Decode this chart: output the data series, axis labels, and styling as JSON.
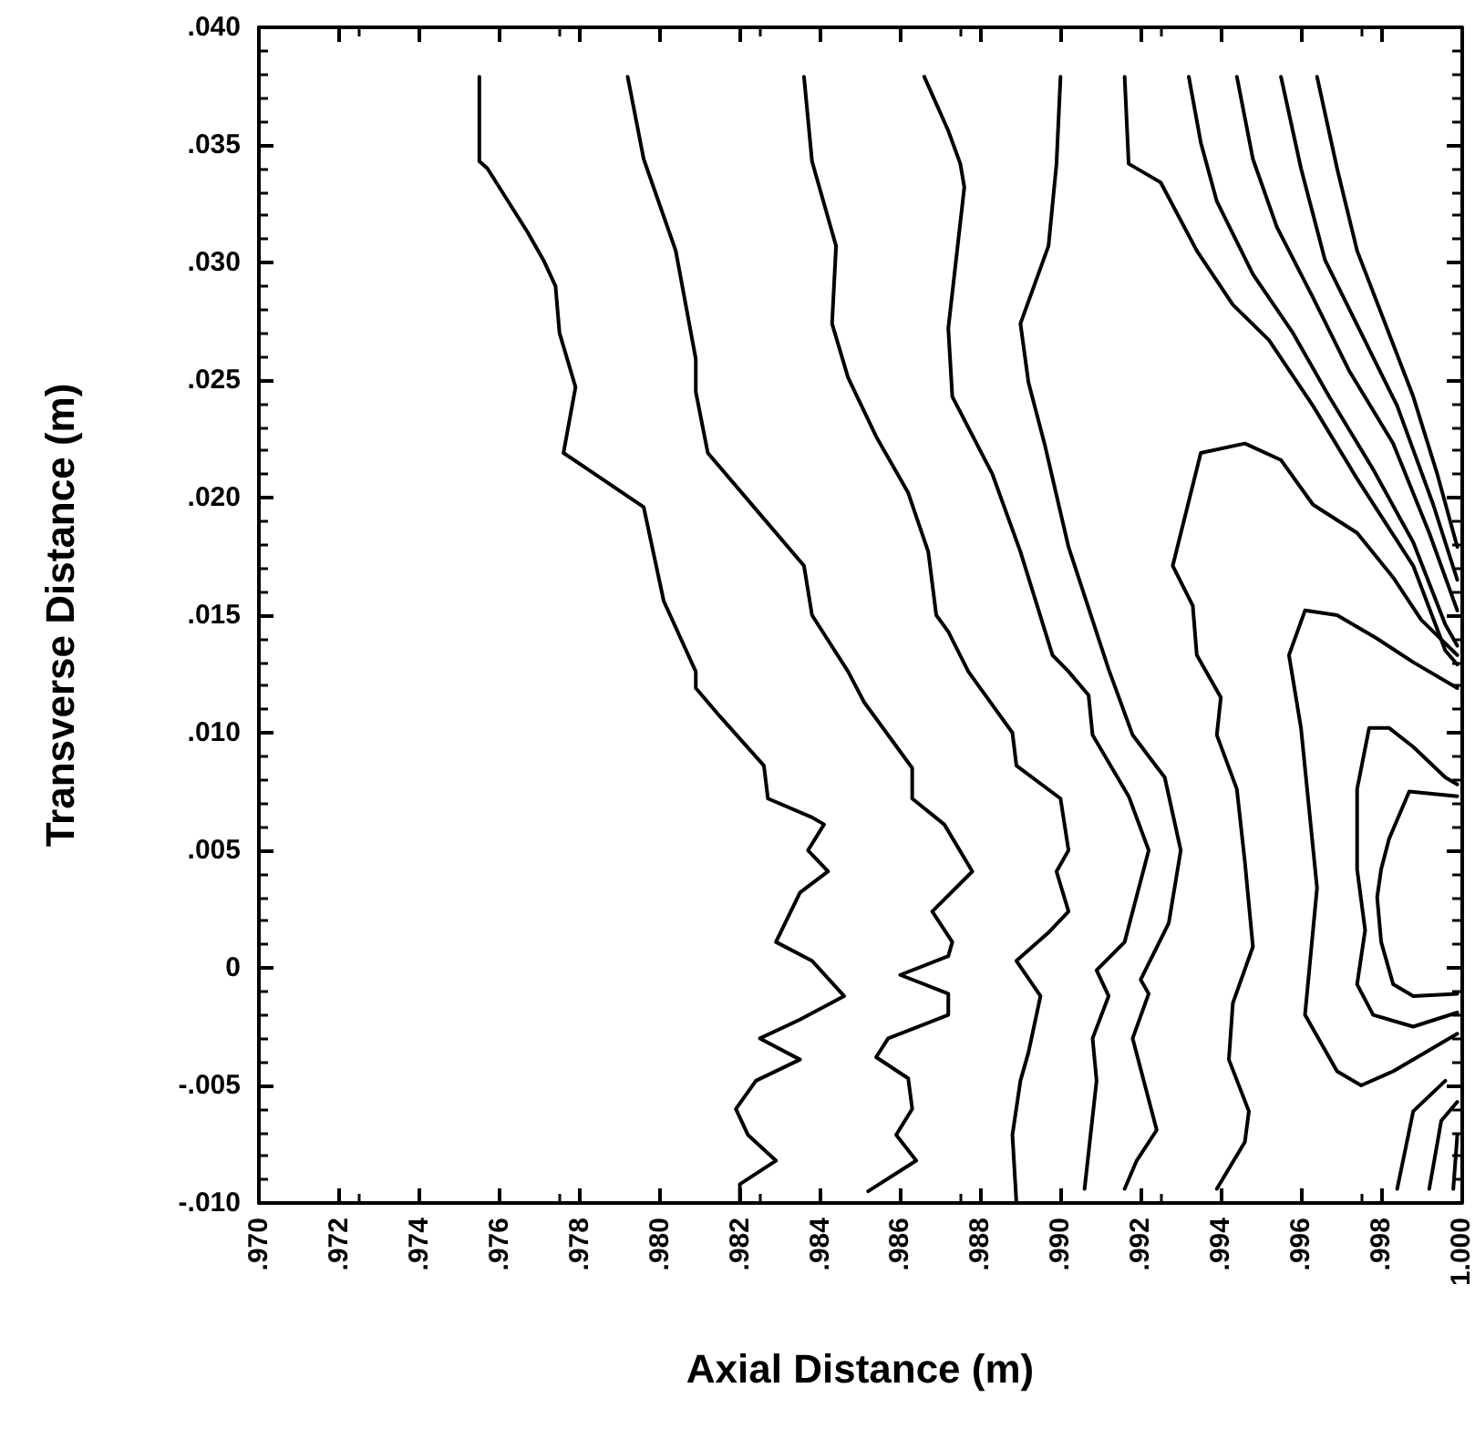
{
  "chart_data": {
    "type": "line",
    "xlabel": "Axial Distance (m)",
    "ylabel": "Transverse Distance (m)",
    "xlim": [
      0.97,
      1.0
    ],
    "ylim": [
      -0.01,
      0.04
    ],
    "xticks": [
      {
        "value": 0.97,
        "label": ".970"
      },
      {
        "value": 0.972,
        "label": ".972"
      },
      {
        "value": 0.974,
        "label": ".974"
      },
      {
        "value": 0.976,
        "label": ".976"
      },
      {
        "value": 0.978,
        "label": ".978"
      },
      {
        "value": 0.98,
        "label": ".980"
      },
      {
        "value": 0.982,
        "label": ".982"
      },
      {
        "value": 0.984,
        "label": ".984"
      },
      {
        "value": 0.986,
        "label": ".986"
      },
      {
        "value": 0.988,
        "label": ".988"
      },
      {
        "value": 0.99,
        "label": ".990"
      },
      {
        "value": 0.992,
        "label": ".992"
      },
      {
        "value": 0.994,
        "label": ".994"
      },
      {
        "value": 0.996,
        "label": ".996"
      },
      {
        "value": 0.998,
        "label": ".998"
      },
      {
        "value": 1.0,
        "label": "1.000"
      }
    ],
    "yticks": [
      {
        "value": -0.01,
        "label": "-.010"
      },
      {
        "value": -0.005,
        "label": "-.005"
      },
      0,
      {
        "value": 0.005,
        "label": ".005"
      },
      {
        "value": 0.01,
        "label": ".010"
      },
      {
        "value": 0.015,
        "label": ".015"
      },
      {
        "value": 0.02,
        "label": ".020"
      },
      {
        "value": 0.025,
        "label": ".025"
      },
      {
        "value": 0.03,
        "label": ".030"
      },
      {
        "value": 0.035,
        "label": ".035"
      },
      {
        "value": 0.04,
        "label": ".040"
      }
    ],
    "marker": "none",
    "line_style": "solid",
    "series": [
      {
        "color": "#000000",
        "x": [
          0.9755,
          0.9755,
          0.9757,
          0.9767,
          0.9771,
          0.9774,
          0.9775,
          0.9779,
          0.9776,
          0.9796,
          0.9801,
          0.9809,
          0.9809,
          0.9815,
          0.9826,
          0.9827,
          0.9838,
          0.9841,
          0.9837,
          0.9842,
          0.9835,
          0.9829,
          0.9838,
          0.9846,
          0.9835,
          0.9825,
          0.9835,
          0.9824,
          0.9819,
          0.9822,
          0.9829,
          0.982,
          0.982
        ],
        "values": [
          0.0379,
          0.0343,
          0.034,
          0.0313,
          0.0301,
          0.029,
          0.027,
          0.0247,
          0.0219,
          0.0196,
          0.0156,
          0.0126,
          0.0119,
          0.0107,
          0.0086,
          0.0072,
          0.0064,
          0.0061,
          0.005,
          0.0041,
          0.0032,
          0.0011,
          0.0003,
          -0.0012,
          -0.0022,
          -0.003,
          -0.0039,
          -0.0048,
          -0.006,
          -0.0071,
          -0.0082,
          -0.0092,
          -0.01
        ]
      },
      {
        "color": "#000000",
        "x": [
          0.9792,
          0.9796,
          0.9804,
          0.9809,
          0.9809,
          0.9812,
          0.9827,
          0.9836,
          0.9838,
          0.9847,
          0.9851,
          0.9863,
          0.9863,
          0.9871,
          0.9878,
          0.9868,
          0.9873,
          0.9872,
          0.986,
          0.9872,
          0.9872,
          0.9857,
          0.9854,
          0.9862,
          0.9863,
          0.9859,
          0.9864,
          0.9852
        ],
        "values": [
          0.0379,
          0.0344,
          0.0305,
          0.0259,
          0.0245,
          0.0219,
          0.0189,
          0.0171,
          0.015,
          0.0126,
          0.0113,
          0.0085,
          0.0072,
          0.0061,
          0.0041,
          0.0024,
          0.0011,
          0.0005,
          -0.0003,
          -0.0011,
          -0.002,
          -0.003,
          -0.0038,
          -0.0047,
          -0.006,
          -0.0071,
          -0.0082,
          -0.0095
        ]
      },
      {
        "color": "#000000",
        "x": [
          0.9836,
          0.9838,
          0.9844,
          0.9843,
          0.9847,
          0.9854,
          0.9862,
          0.9867,
          0.9869,
          0.9872,
          0.9877,
          0.9888,
          0.9889,
          0.99,
          0.9902,
          0.9899,
          0.9902,
          0.9897,
          0.9889,
          0.9895,
          0.9892,
          0.989,
          0.9888,
          0.9889
        ],
        "values": [
          0.0379,
          0.0343,
          0.0307,
          0.0274,
          0.0251,
          0.0226,
          0.0202,
          0.0177,
          0.015,
          0.0143,
          0.0126,
          0.01,
          0.0086,
          0.0072,
          0.005,
          0.0041,
          0.0024,
          0.0015,
          0.0003,
          -0.0012,
          -0.0036,
          -0.0048,
          -0.0071,
          -0.01
        ]
      },
      {
        "color": "#000000",
        "x": [
          0.9866,
          0.9872,
          0.9875,
          0.9876,
          0.9872,
          0.9873,
          0.9883,
          0.989,
          0.9898,
          0.9902,
          0.9907,
          0.9908,
          0.9917,
          0.9922,
          0.9916,
          0.9909,
          0.9912,
          0.9908,
          0.9909,
          0.9906
        ],
        "values": [
          0.0379,
          0.0356,
          0.0342,
          0.0332,
          0.0272,
          0.0243,
          0.021,
          0.0177,
          0.0133,
          0.0126,
          0.0116,
          0.0099,
          0.0073,
          0.005,
          0.0011,
          -0.0001,
          -0.0012,
          -0.003,
          -0.0048,
          -0.0094
        ]
      },
      {
        "color": "#000000",
        "x": [
          0.99,
          0.9899,
          0.9897,
          0.989,
          0.9892,
          0.9896,
          0.9902,
          0.9912,
          0.9918,
          0.9926,
          0.993,
          0.9927,
          0.992,
          0.9922,
          0.9918,
          0.9924,
          0.9919,
          0.9916
        ],
        "values": [
          0.0379,
          0.0342,
          0.0307,
          0.0274,
          0.0249,
          0.0223,
          0.0179,
          0.0127,
          0.0099,
          0.0081,
          0.005,
          0.0019,
          -0.0005,
          -0.0011,
          -0.003,
          -0.0069,
          -0.0082,
          -0.0094
        ]
      },
      {
        "color": "#000000",
        "x": [
          0.9916,
          0.9917,
          0.9925,
          0.9934,
          0.9943,
          0.9952,
          0.9963,
          0.9974,
          0.9988,
          0.9996,
          0.9999
        ],
        "values": [
          0.0379,
          0.0342,
          0.0334,
          0.0305,
          0.0282,
          0.0267,
          0.0239,
          0.0208,
          0.0171,
          0.0135,
          0.0129
        ]
      },
      {
        "color": "#000000",
        "x": [
          0.9932,
          0.9935,
          0.9939,
          0.9948,
          0.9958,
          0.9967,
          0.9978,
          0.9988,
          0.9996,
          0.9999
        ],
        "values": [
          0.0379,
          0.0351,
          0.0326,
          0.0295,
          0.027,
          0.0243,
          0.0212,
          0.0181,
          0.0146,
          0.0137
        ]
      },
      {
        "color": "#000000",
        "x": [
          0.9944,
          0.9948,
          0.9954,
          0.9963,
          0.9972,
          0.9983,
          0.9992,
          0.9999
        ],
        "values": [
          0.0379,
          0.0344,
          0.0315,
          0.0285,
          0.0254,
          0.0223,
          0.0185,
          0.0152
        ]
      },
      {
        "color": "#000000",
        "x": [
          0.9955,
          0.996,
          0.9966,
          0.9975,
          0.9984,
          0.9993,
          0.9999
        ],
        "values": [
          0.0379,
          0.034,
          0.0301,
          0.027,
          0.0239,
          0.0197,
          0.0165
        ]
      },
      {
        "color": "#000000",
        "x": [
          0.9964,
          0.9969,
          0.9974,
          0.9981,
          0.9988,
          0.9994,
          0.9999
        ],
        "values": [
          0.0379,
          0.034,
          0.0305,
          0.0274,
          0.0243,
          0.021,
          0.0179
        ]
      },
      {
        "color": "#000000",
        "x": [
          0.9999,
          0.999,
          0.9983,
          0.9974,
          0.9963,
          0.9955,
          0.9946,
          0.9935,
          0.9928,
          0.9933,
          0.9934,
          0.994,
          0.9939,
          0.9944,
          0.9946,
          0.9948,
          0.9943,
          0.9942,
          0.9947,
          0.9946,
          0.9939
        ],
        "values": [
          0.0133,
          0.0148,
          0.0166,
          0.0185,
          0.0197,
          0.0216,
          0.0223,
          0.0219,
          0.0171,
          0.0154,
          0.0133,
          0.0115,
          0.0099,
          0.0076,
          0.0045,
          0.0009,
          -0.0015,
          -0.0039,
          -0.0061,
          -0.0074,
          -0.0094
        ]
      },
      {
        "color": "#000000",
        "x": [
          0.9999,
          0.9988,
          0.9979,
          0.9969,
          0.9961,
          0.9957,
          0.996,
          0.9964,
          0.9961,
          0.9969,
          0.9975,
          0.9983,
          0.9999
        ],
        "values": [
          0.0119,
          0.013,
          0.014,
          0.015,
          0.0152,
          0.0133,
          0.0102,
          0.0034,
          -0.002,
          -0.0044,
          -0.005,
          -0.0044,
          -0.0028
        ]
      },
      {
        "color": "#000000",
        "x": [
          0.9999,
          0.9996,
          0.9988,
          0.9982,
          0.9977,
          0.9974,
          0.9974,
          0.9976,
          0.9974,
          0.9978,
          0.9988,
          0.9999
        ],
        "values": [
          0.0078,
          0.0081,
          0.0094,
          0.0102,
          0.0102,
          0.0076,
          0.0042,
          0.0016,
          -0.0007,
          -0.002,
          -0.0025,
          -0.0019
        ]
      },
      {
        "color": "#000000",
        "x": [
          0.9999,
          0.9987,
          0.9982,
          0.998,
          0.9979,
          0.998,
          0.9983,
          0.9988,
          0.9999
        ],
        "values": [
          0.0073,
          0.0075,
          0.0055,
          0.0042,
          0.003,
          0.0011,
          -0.0007,
          -0.0012,
          -0.0011
        ]
      },
      {
        "color": "#000000",
        "x": [
          0.9996,
          0.9988,
          0.9984
        ],
        "values": [
          -0.0048,
          -0.0061,
          -0.0094
        ]
      },
      {
        "color": "#000000",
        "x": [
          0.9999,
          0.9995,
          0.9992
        ],
        "values": [
          -0.0057,
          -0.0065,
          -0.0094
        ]
      },
      {
        "color": "#000000",
        "x": [
          0.9999,
          0.9998
        ],
        "values": [
          -0.0071,
          -0.0094
        ]
      }
    ]
  }
}
